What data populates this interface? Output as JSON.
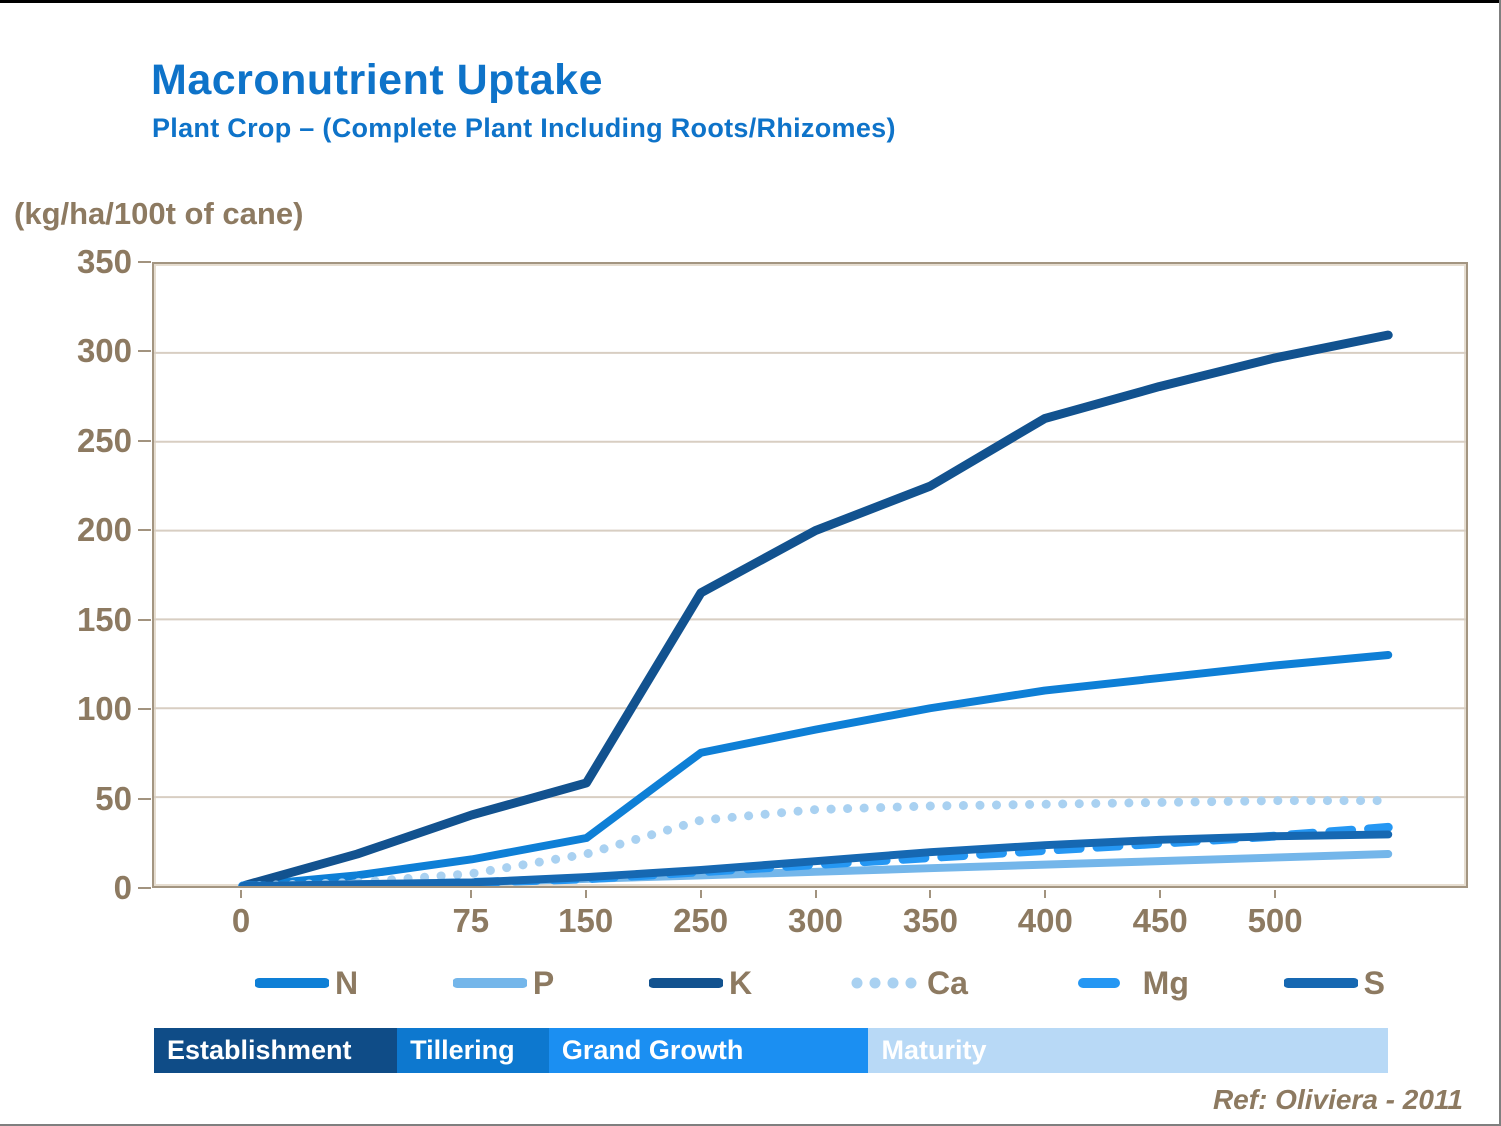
{
  "header": {
    "title": "Macronutrient Uptake",
    "subtitle": "Plant Crop – (Complete Plant Including Roots/Rhizomes)"
  },
  "ref_text": "Ref: Oliviera - 2011",
  "chart_data": {
    "type": "line",
    "title": "Macronutrient Uptake",
    "subtitle": "Plant Crop – (Complete Plant Including Roots/Rhizomes)",
    "y_axis_unit_label": "(kg/ha/100t of cane)",
    "ylim": [
      0,
      350
    ],
    "y_ticks": [
      0,
      50,
      100,
      150,
      200,
      250,
      300,
      350
    ],
    "x_tick_labels": [
      "0",
      "",
      "75",
      "150",
      "250",
      "300",
      "350",
      "400",
      "450",
      "500",
      ""
    ],
    "grid": "horizontal-only",
    "gridline_color": "#d8cec2",
    "axis_text_color": "#8d7a61",
    "legend_position": "bottom",
    "series": [
      {
        "name": "N",
        "color": "#0e7fd6",
        "line_style": "solid",
        "line_width": 8,
        "values": [
          0,
          6,
          15,
          27,
          75,
          88,
          100,
          110,
          117,
          124,
          130
        ]
      },
      {
        "name": "P",
        "color": "#74b6ea",
        "line_style": "solid",
        "line_width": 8,
        "values": [
          0,
          1,
          2,
          4,
          6,
          8,
          10,
          12,
          14,
          16,
          18
        ]
      },
      {
        "name": "K",
        "color": "#12528f",
        "line_style": "solid",
        "line_width": 9,
        "values": [
          0,
          18,
          40,
          58,
          165,
          200,
          225,
          263,
          281,
          297,
          310
        ]
      },
      {
        "name": "Ca",
        "color": "#a9d1f1",
        "line_style": "dotted",
        "line_width": 9,
        "values": [
          0,
          2,
          7,
          18,
          37,
          43,
          45,
          46,
          47,
          48,
          48
        ]
      },
      {
        "name": "Mg",
        "color": "#2597f3",
        "line_style": "dashed",
        "line_width": 9,
        "values": [
          0,
          0,
          2,
          4,
          8,
          12,
          16,
          20,
          24,
          28,
          33
        ]
      },
      {
        "name": "S",
        "color": "#1668b2",
        "line_style": "solid",
        "line_width": 8,
        "values": [
          0,
          1,
          2,
          5,
          9,
          14,
          19,
          23,
          26,
          28,
          29
        ]
      }
    ]
  },
  "phases": {
    "segments": [
      {
        "label": "Establishment",
        "color": "#0f4c87",
        "width_pct": 19.7
      },
      {
        "label": "Tillering",
        "color": "#0d78cf",
        "width_pct": 12.3
      },
      {
        "label": "Grand Growth",
        "color": "#1b8ff2",
        "width_pct": 25.9
      },
      {
        "label": "Maturity",
        "color": "#b8d9f6",
        "width_pct": 42.1
      }
    ]
  }
}
